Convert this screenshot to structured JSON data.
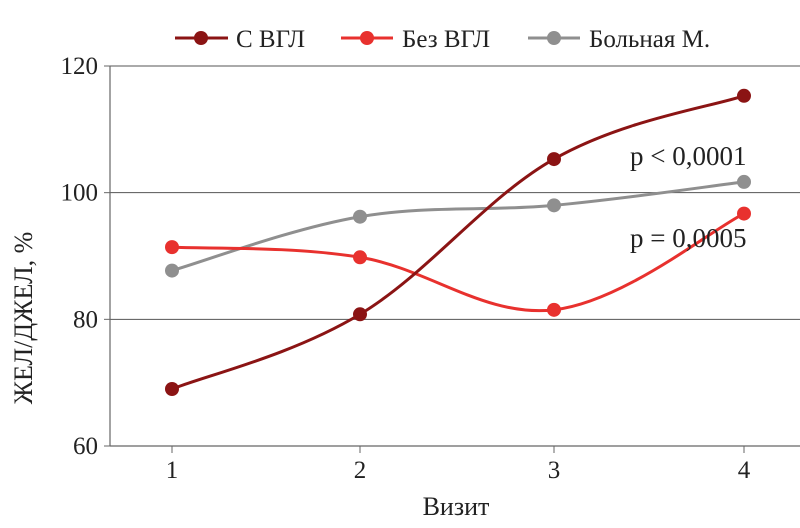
{
  "chart_data": {
    "type": "line",
    "xlabel": "Визит",
    "ylabel": "ЖЕЛ/ДЖЕЛ, %",
    "x": [
      "1",
      "2",
      "3",
      "4"
    ],
    "ylim": [
      60,
      120
    ],
    "yticks": [
      "60",
      "80",
      "100",
      "120"
    ],
    "grid": "horizontal",
    "legend_position": "top",
    "series": [
      {
        "name": "С ВГЛ",
        "color": "#8b1414",
        "values": [
          69.0,
          80.8,
          105.3,
          115.3
        ]
      },
      {
        "name": "Без ВГЛ",
        "color": "#e8312e",
        "values": [
          91.4,
          89.8,
          81.5,
          96.7
        ]
      },
      {
        "name": "Больная М.",
        "color": "#8f8f8f",
        "values": [
          87.7,
          96.2,
          98.0,
          101.7
        ]
      }
    ],
    "annotations": [
      "p < 0,0001",
      "p = 0,0005"
    ]
  }
}
